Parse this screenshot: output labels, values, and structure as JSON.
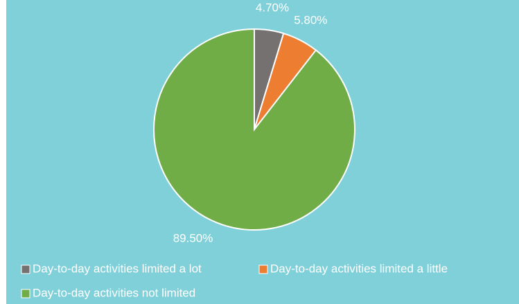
{
  "chart_data": {
    "type": "pie",
    "categories": [
      "Day-to-day activities limited a lot",
      "Day-to-day activities limited a little",
      "Day-to-day activities not limited"
    ],
    "values": [
      4.7,
      5.8,
      89.5
    ],
    "value_labels": [
      "4.70%",
      "5.80%",
      "89.50%"
    ],
    "colors": [
      "#767171",
      "#ed7d31",
      "#70ad47"
    ],
    "legend": "bottom"
  }
}
